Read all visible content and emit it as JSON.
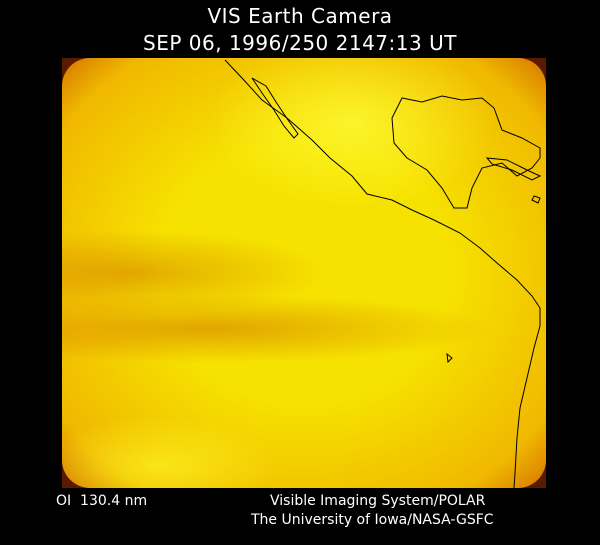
{
  "header": {
    "title": "VIS Earth Camera",
    "timestamp": "SEP 06, 1996/250 2147:13 UT"
  },
  "footer": {
    "wavelength": "OI  130.4 nm",
    "instrument": "Visible Imaging System/POLAR",
    "institution": "The University of Iowa/NASA-GSFC"
  }
}
